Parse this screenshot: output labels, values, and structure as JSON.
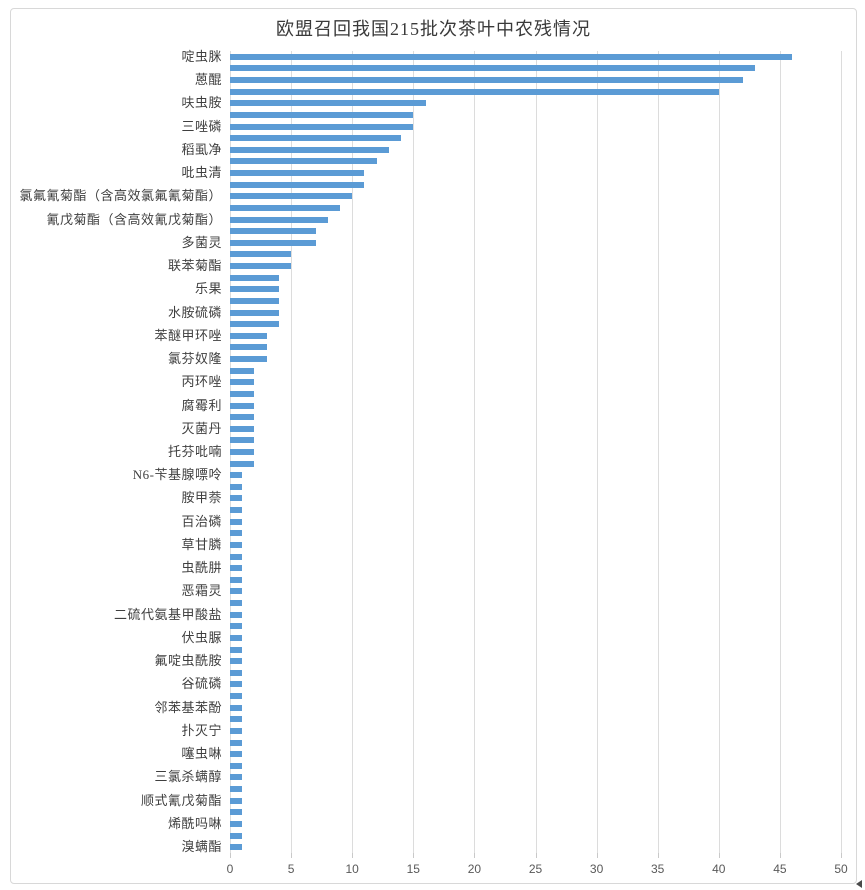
{
  "chart_data": {
    "type": "bar",
    "orientation": "horizontal",
    "title": "欧盟召回我国215批次茶叶中农残情况",
    "categories": [
      "啶虫脒",
      "",
      "蒽醌",
      "",
      "呋虫胺",
      "",
      "三唑磷",
      "",
      "稻虱净",
      "",
      "吡虫清",
      "",
      "氯氟氰菊酯（含高效氯氟氰菊酯）",
      "",
      "氰戊菊酯（含高效氰戊菊酯）",
      "",
      "多菌灵",
      "",
      "联苯菊酯",
      "",
      "乐果",
      "",
      "水胺硫磷",
      "",
      "苯醚甲环唑",
      "",
      "氯芬奴隆",
      "",
      "丙环唑",
      "",
      "腐霉利",
      "",
      "灭菌丹",
      "",
      "托芬吡喃",
      "",
      "N6-苄基腺嘌呤",
      "",
      "胺甲萘",
      "",
      "百治磷",
      "",
      "草甘膦",
      "",
      "虫酰肼",
      "",
      "恶霜灵",
      "",
      "二硫代氨基甲酸盐",
      "",
      "伏虫脲",
      "",
      "氟啶虫酰胺",
      "",
      "谷硫磷",
      "",
      "邻苯基苯酚",
      "",
      "扑灭宁",
      "",
      "噻虫啉",
      "",
      "三氯杀螨醇",
      "",
      "顺式氰戊菊酯",
      "",
      "烯酰吗啉",
      "",
      "溴螨酯"
    ],
    "values": [
      46,
      43,
      42,
      40,
      16,
      15,
      15,
      14,
      13,
      12,
      11,
      11,
      10,
      9,
      8,
      7,
      7,
      5,
      5,
      4,
      4,
      4,
      4,
      4,
      3,
      3,
      3,
      2,
      2,
      2,
      2,
      2,
      2,
      2,
      2,
      2,
      1,
      1,
      1,
      1,
      1,
      1,
      1,
      1,
      1,
      1,
      1,
      1,
      1,
      1,
      1,
      1,
      1,
      1,
      1,
      1,
      1,
      1,
      1,
      1,
      1,
      1,
      1,
      1,
      1,
      1,
      1,
      1,
      1
    ],
    "xlabel": "",
    "ylabel": "",
    "xlim": [
      0,
      50
    ],
    "x_ticks": [
      0,
      5,
      10,
      15,
      20,
      25,
      30,
      35,
      40,
      45,
      50
    ],
    "grid": true,
    "legend": false,
    "bar_color": "#5B9BD5",
    "gridline_color": "#dcdcdc",
    "axis_text_color": "#595959",
    "label_text_color": "#3f3f3f"
  }
}
